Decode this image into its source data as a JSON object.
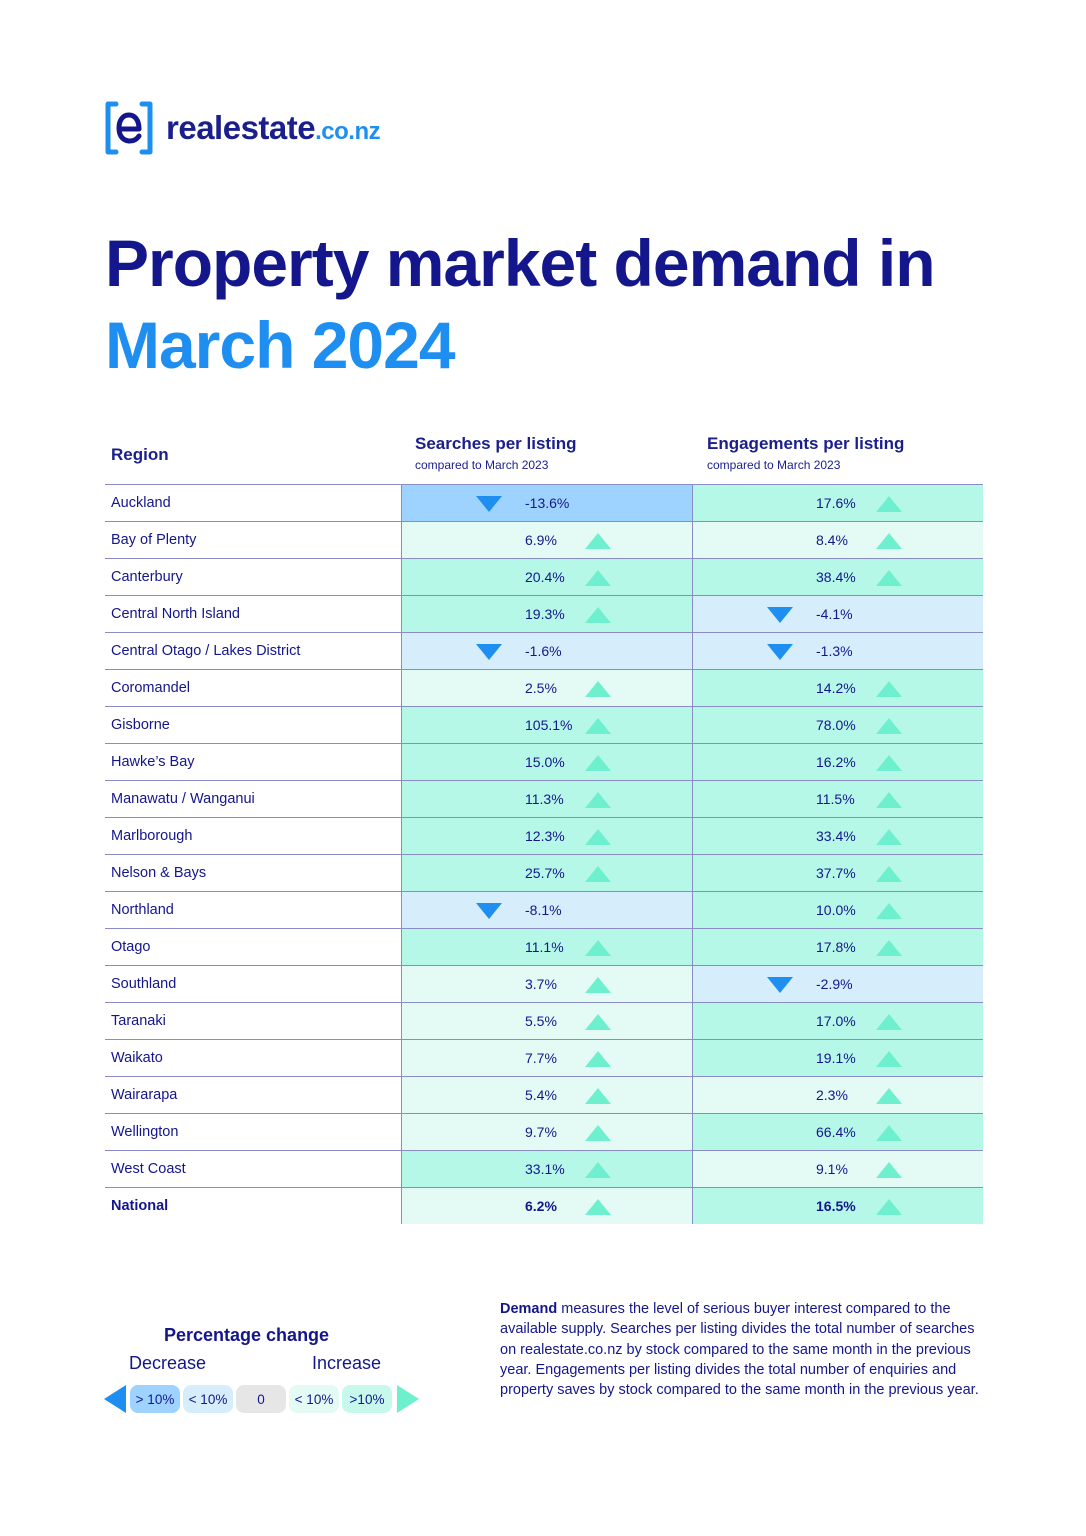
{
  "brand": {
    "name": "realestate",
    "tld": ".co.nz"
  },
  "title": {
    "line1": "Property market demand in",
    "line2": "March 2024"
  },
  "colors": {
    "navy": "#14168c",
    "blue": "#1e8ff0",
    "decrease_big": "#9fd3ff",
    "decrease_small": "#d6edfc",
    "neutral": "#e6e6e6",
    "increase_small": "#e4fbf5",
    "increase_big": "#b6f8e8",
    "arrow_down": "#1e8ff0",
    "arrow_up": "#6ef0cf"
  },
  "table": {
    "region_header": "Region",
    "searches_header": "Searches per listing",
    "searches_sub": "compared to March 2023",
    "engagements_header": "Engagements per listing",
    "engagements_sub": "compared to March 2023",
    "rows": [
      {
        "region": "Auckland",
        "searches": "-13.6%",
        "engagements": "17.6%"
      },
      {
        "region": "Bay of Plenty",
        "searches": "6.9%",
        "engagements": "8.4%"
      },
      {
        "region": "Canterbury",
        "searches": "20.4%",
        "engagements": "38.4%"
      },
      {
        "region": "Central North Island",
        "searches": "19.3%",
        "engagements": "-4.1%"
      },
      {
        "region": "Central Otago / Lakes District",
        "searches": "-1.6%",
        "engagements": "-1.3%"
      },
      {
        "region": "Coromandel",
        "searches": "2.5%",
        "engagements": "14.2%"
      },
      {
        "region": "Gisborne",
        "searches": "105.1%",
        "engagements": "78.0%"
      },
      {
        "region": "Hawke’s Bay",
        "searches": "15.0%",
        "engagements": "16.2%"
      },
      {
        "region": "Manawatu / Wanganui",
        "searches": "11.3%",
        "engagements": "11.5%"
      },
      {
        "region": "Marlborough",
        "searches": "12.3%",
        "engagements": "33.4%"
      },
      {
        "region": "Nelson & Bays",
        "searches": "25.7%",
        "engagements": "37.7%"
      },
      {
        "region": "Northland",
        "searches": "-8.1%",
        "engagements": "10.0%"
      },
      {
        "region": "Otago",
        "searches": "11.1%",
        "engagements": "17.8%"
      },
      {
        "region": "Southland",
        "searches": "3.7%",
        "engagements": "-2.9%"
      },
      {
        "region": "Taranaki",
        "searches": "5.5%",
        "engagements": "17.0%"
      },
      {
        "region": "Waikato",
        "searches": "7.7%",
        "engagements": "19.1%"
      },
      {
        "region": "Wairarapa",
        "searches": "5.4%",
        "engagements": "2.3%"
      },
      {
        "region": "Wellington",
        "searches": "9.7%",
        "engagements": "66.4%"
      },
      {
        "region": "West Coast",
        "searches": "33.1%",
        "engagements": "9.1%"
      },
      {
        "region": "National",
        "searches": "6.2%",
        "engagements": "16.5%",
        "bold": true
      }
    ]
  },
  "legend": {
    "title": "Percentage change",
    "decrease": "Decrease",
    "increase": "Increase",
    "chips": [
      {
        "label": "> 10%",
        "color": "#9fd3ff"
      },
      {
        "label": "< 10%",
        "color": "#d6edfc"
      },
      {
        "label": "0",
        "color": "#e6e6e6"
      },
      {
        "label": "< 10%",
        "color": "#e4fbf5"
      },
      {
        "label": ">10%",
        "color": "#c6f9ec"
      }
    ]
  },
  "description": {
    "term": "Demand",
    "text": " measures the level of serious buyer interest compared to the available supply. Searches per listing divides the total number of searches on realestate.co.nz by stock compared to the same month in the previous year. Engagements per listing divides the total number of enquiries and property saves by stock compared to the same month in the previous year."
  }
}
